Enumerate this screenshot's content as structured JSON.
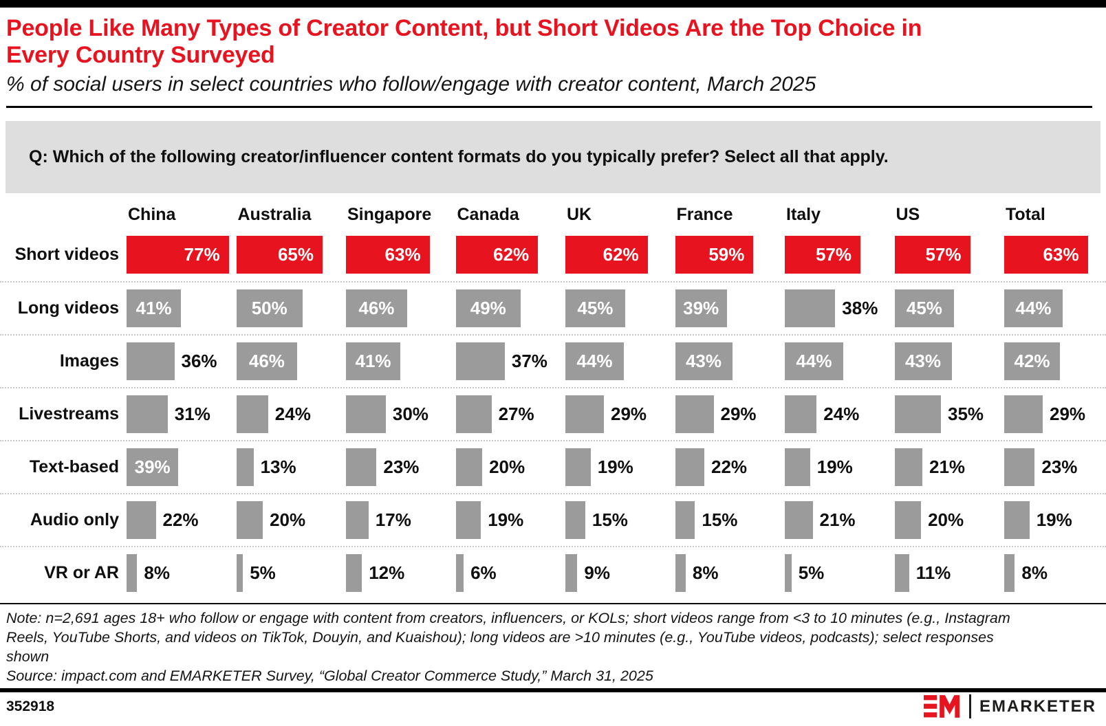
{
  "header": {
    "title": "People Like Many Types of Creator Content, but Short Videos Are the Top Choice in\nEvery Country Surveyed",
    "subtitle": "% of social users in select countries who follow/engage with creator content, March 2025"
  },
  "question": "Q: Which of the following creator/influencer content formats do you typically prefer? Select all that apply.",
  "chart_data": {
    "type": "bar",
    "orientation": "horizontal",
    "title": "People Like Many Types of Creator Content, but Short Videos Are the Top Choice in Every Country Surveyed",
    "subtitle": "% of social users in select countries who follow/engage with creator content, March 2025",
    "unit": "%",
    "value_range": [
      0,
      100
    ],
    "grid": false,
    "legend": "none",
    "categories": [
      "China",
      "Australia",
      "Singapore",
      "Canada",
      "UK",
      "France",
      "Italy",
      "US",
      "Total"
    ],
    "rows": [
      {
        "label": "Short videos",
        "color": "red",
        "values": [
          77,
          65,
          63,
          62,
          62,
          59,
          57,
          57,
          63
        ]
      },
      {
        "label": "Long videos",
        "color": "gray",
        "values": [
          41,
          50,
          46,
          49,
          45,
          39,
          38,
          45,
          44
        ]
      },
      {
        "label": "Images",
        "color": "gray",
        "values": [
          36,
          46,
          41,
          37,
          44,
          43,
          44,
          43,
          42
        ]
      },
      {
        "label": "Livestreams",
        "color": "gray",
        "values": [
          31,
          24,
          30,
          27,
          29,
          29,
          24,
          35,
          29
        ]
      },
      {
        "label": "Text-based",
        "color": "gray",
        "values": [
          39,
          13,
          23,
          20,
          19,
          22,
          19,
          21,
          23
        ]
      },
      {
        "label": "Audio only",
        "color": "gray",
        "values": [
          22,
          20,
          17,
          19,
          15,
          15,
          21,
          20,
          19
        ]
      },
      {
        "label": "VR or AR",
        "color": "gray",
        "values": [
          8,
          5,
          12,
          6,
          9,
          8,
          5,
          11,
          8
        ]
      }
    ]
  },
  "note": "Note: n=2,691 ages 18+ who follow or engage with content from creators, influencers, or KOLs; short videos range from <3 to 10 minutes (e.g., Instagram\nReels, YouTube Shorts, and videos on TikTok, Douyin, and Kuaishou); long videos are >10 minutes (e.g., YouTube videos, podcasts); select responses\nshown",
  "source": "Source: impact.com and EMARKETER Survey, “Global Creator Commerce Study,” March 31, 2025",
  "footer": {
    "chart_id": "352918",
    "brand": "EMARKETER"
  },
  "colors": {
    "red_bar": "#e7131f",
    "gray_bar": "#9b9b9b",
    "question_bg": "#dedede"
  }
}
